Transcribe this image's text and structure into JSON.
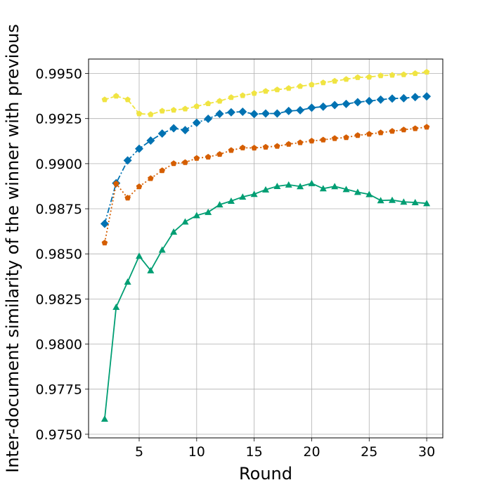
{
  "chart_data": {
    "type": "line",
    "title": "",
    "xlabel": "Round",
    "ylabel": "Inter-document similarity of the winner with previous",
    "xlim": [
      0.6,
      31.4
    ],
    "ylim": [
      0.9748,
      0.9958
    ],
    "grid": true,
    "legend": "none",
    "x_ticks": [
      5,
      10,
      15,
      20,
      25,
      30
    ],
    "x_tick_labels": [
      "5",
      "10",
      "15",
      "20",
      "25",
      "30"
    ],
    "y_ticks": [
      0.975,
      0.9775,
      0.98,
      0.9825,
      0.985,
      0.9875,
      0.99,
      0.9925,
      0.995
    ],
    "y_tick_labels": [
      "0.9750",
      "0.9775",
      "0.9800",
      "0.9825",
      "0.9850",
      "0.9875",
      "0.9900",
      "0.9925",
      "0.9950"
    ],
    "x": [
      2,
      3,
      4,
      5,
      6,
      7,
      8,
      9,
      10,
      11,
      12,
      13,
      14,
      15,
      16,
      17,
      18,
      19,
      20,
      21,
      22,
      23,
      24,
      25,
      26,
      27,
      28,
      29,
      30
    ],
    "series": [
      {
        "name": "yellow",
        "color": "#f0e442",
        "marker": "pentagon",
        "linestyle": "dashed",
        "values": [
          0.99355,
          0.99375,
          0.99355,
          0.99277,
          0.99273,
          0.99292,
          0.99297,
          0.99304,
          0.99318,
          0.99333,
          0.99347,
          0.99367,
          0.99378,
          0.9939,
          0.99402,
          0.9941,
          0.99418,
          0.99429,
          0.99438,
          0.99449,
          0.99458,
          0.99468,
          0.99478,
          0.9948,
          0.99488,
          0.99491,
          0.99494,
          0.995,
          0.99508
        ]
      },
      {
        "name": "blue",
        "color": "#0072b2",
        "marker": "diamond",
        "linestyle": "dashdot",
        "values": [
          0.98667,
          0.98892,
          0.99018,
          0.99083,
          0.99128,
          0.99167,
          0.99196,
          0.99186,
          0.99227,
          0.99249,
          0.99276,
          0.99285,
          0.99288,
          0.99275,
          0.99278,
          0.99278,
          0.99292,
          0.99296,
          0.9931,
          0.99316,
          0.99325,
          0.99331,
          0.99341,
          0.99347,
          0.99355,
          0.99361,
          0.99363,
          0.99369,
          0.99373
        ]
      },
      {
        "name": "orange",
        "color": "#d55e00",
        "marker": "pentagon",
        "linestyle": "dotted",
        "values": [
          0.98561,
          0.98889,
          0.9881,
          0.98873,
          0.98918,
          0.98962,
          0.99001,
          0.99007,
          0.9903,
          0.99037,
          0.99052,
          0.99074,
          0.99088,
          0.99087,
          0.99092,
          0.99097,
          0.99108,
          0.99117,
          0.99126,
          0.99132,
          0.9914,
          0.99145,
          0.99157,
          0.99164,
          0.99172,
          0.9918,
          0.99188,
          0.99195,
          0.99203
        ]
      },
      {
        "name": "green",
        "color": "#009e73",
        "marker": "triangle",
        "linestyle": "solid",
        "values": [
          0.97585,
          0.98205,
          0.98345,
          0.98488,
          0.98408,
          0.98522,
          0.98622,
          0.98678,
          0.98713,
          0.98731,
          0.98773,
          0.98793,
          0.98816,
          0.98831,
          0.98856,
          0.98875,
          0.98883,
          0.98874,
          0.98891,
          0.98862,
          0.98874,
          0.98858,
          0.98842,
          0.9883,
          0.98796,
          0.98798,
          0.98788,
          0.98785,
          0.9878
        ]
      }
    ]
  }
}
